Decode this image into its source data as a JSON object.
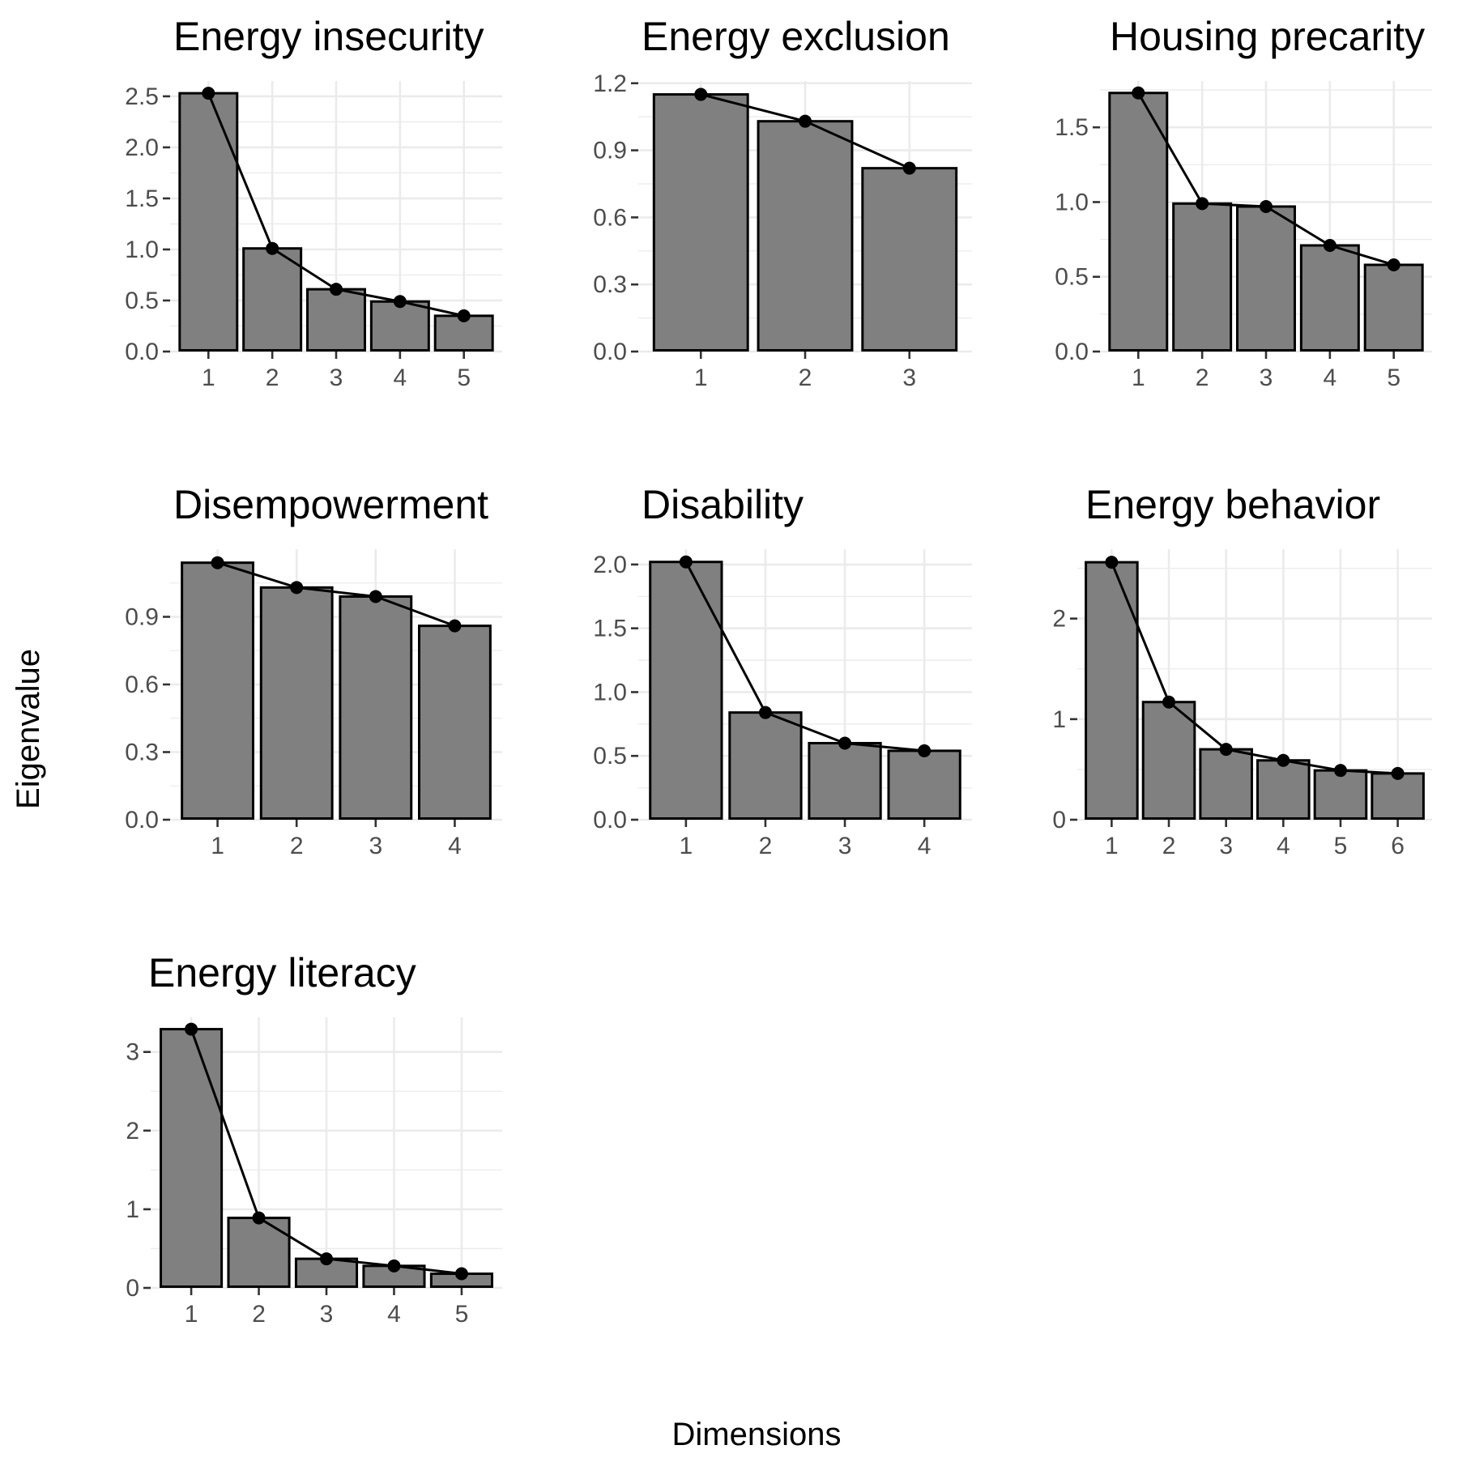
{
  "figure": {
    "x_axis_title": "Dimensions",
    "y_axis_title": "Eigenvalue"
  },
  "chart_data": [
    {
      "type": "bar",
      "title": "Energy insecurity",
      "categories": [
        "1",
        "2",
        "3",
        "4",
        "5"
      ],
      "values": [
        2.53,
        1.01,
        0.61,
        0.49,
        0.35
      ],
      "yticks": [
        "0.0",
        "0.5",
        "1.0",
        "1.5",
        "2.0",
        "2.5"
      ],
      "ylim": [
        0,
        2.65
      ],
      "grid": true
    },
    {
      "type": "bar",
      "title": "Energy exclusion",
      "categories": [
        "1",
        "2",
        "3"
      ],
      "values": [
        1.15,
        1.03,
        0.82
      ],
      "yticks": [
        "0.0",
        "0.3",
        "0.6",
        "0.9",
        "1.2"
      ],
      "ylim": [
        0,
        1.21
      ],
      "grid": true
    },
    {
      "type": "bar",
      "title": "Housing precarity",
      "categories": [
        "1",
        "2",
        "3",
        "4",
        "5"
      ],
      "values": [
        1.73,
        0.99,
        0.97,
        0.71,
        0.58
      ],
      "yticks": [
        "0.0",
        "0.5",
        "1.0",
        "1.5"
      ],
      "ylim": [
        0,
        1.81
      ],
      "grid": true
    },
    {
      "type": "bar",
      "title": "Disempowerment",
      "categories": [
        "1",
        "2",
        "3",
        "4"
      ],
      "values": [
        1.14,
        1.03,
        0.99,
        0.86
      ],
      "yticks": [
        "0.0",
        "0.3",
        "0.6",
        "0.9"
      ],
      "ylim": [
        0,
        1.2
      ],
      "grid": true
    },
    {
      "type": "bar",
      "title": "Disability",
      "categories": [
        "1",
        "2",
        "3",
        "4"
      ],
      "values": [
        2.02,
        0.84,
        0.6,
        0.54
      ],
      "yticks": [
        "0.0",
        "0.5",
        "1.0",
        "1.5",
        "2.0"
      ],
      "ylim": [
        0,
        2.12
      ],
      "grid": true
    },
    {
      "type": "bar",
      "title": "Energy behavior",
      "categories": [
        "1",
        "2",
        "3",
        "4",
        "5",
        "6"
      ],
      "values": [
        2.56,
        1.17,
        0.7,
        0.59,
        0.49,
        0.46
      ],
      "yticks": [
        "0",
        "1",
        "2"
      ],
      "ylim": [
        0,
        2.69
      ],
      "grid": true
    },
    {
      "type": "bar",
      "title": "Energy literacy",
      "categories": [
        "1",
        "2",
        "3",
        "4",
        "5"
      ],
      "values": [
        3.29,
        0.89,
        0.37,
        0.28,
        0.18
      ],
      "yticks": [
        "0",
        "1",
        "2",
        "3"
      ],
      "ylim": [
        0,
        3.44
      ],
      "grid": true
    }
  ]
}
